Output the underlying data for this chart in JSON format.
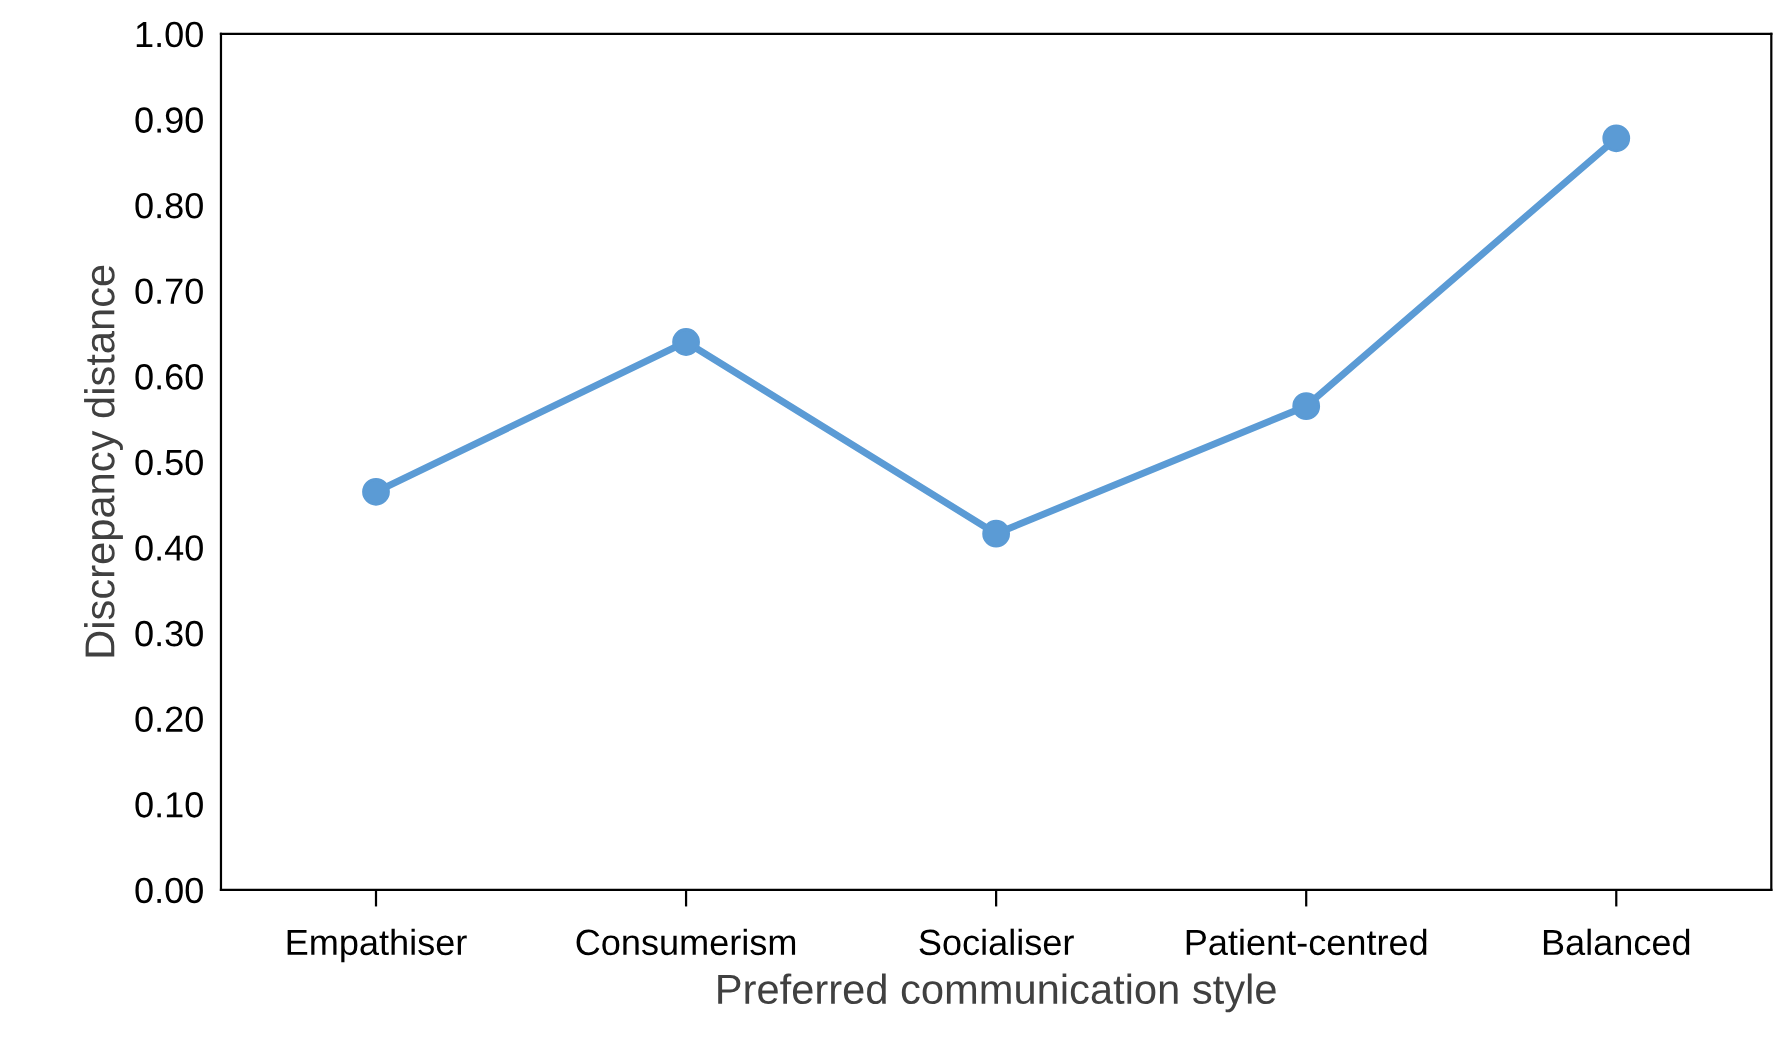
{
  "chart_data": {
    "type": "line",
    "xlabel": "Preferred communication style",
    "ylabel": "Discrepancy distance",
    "categories": [
      "Empathiser",
      "Consumerism",
      "Socialiser",
      "Patient-centred",
      "Balanced"
    ],
    "series": [
      {
        "color": "#5b9bd5",
        "values": [
          0.465,
          0.64,
          0.416,
          0.565,
          0.878
        ]
      }
    ],
    "ylim": [
      0,
      1
    ],
    "yticks": [
      {
        "value": 0,
        "label": "0.00"
      },
      {
        "value": 0.1,
        "label": "0.10"
      },
      {
        "value": 0.2,
        "label": "0.20"
      },
      {
        "value": 0.3,
        "label": "0.30"
      },
      {
        "value": 0.4,
        "label": "0.40"
      },
      {
        "value": 0.5,
        "label": "0.50"
      },
      {
        "value": 0.6,
        "label": "0.60"
      },
      {
        "value": 0.7,
        "label": "0.70"
      },
      {
        "value": 0.8,
        "label": "0.80"
      },
      {
        "value": 0.9,
        "label": "0.90"
      },
      {
        "value": 1,
        "label": "1.00"
      }
    ],
    "grid": false,
    "legend": false,
    "marker": "circle",
    "line_style": "solid"
  }
}
